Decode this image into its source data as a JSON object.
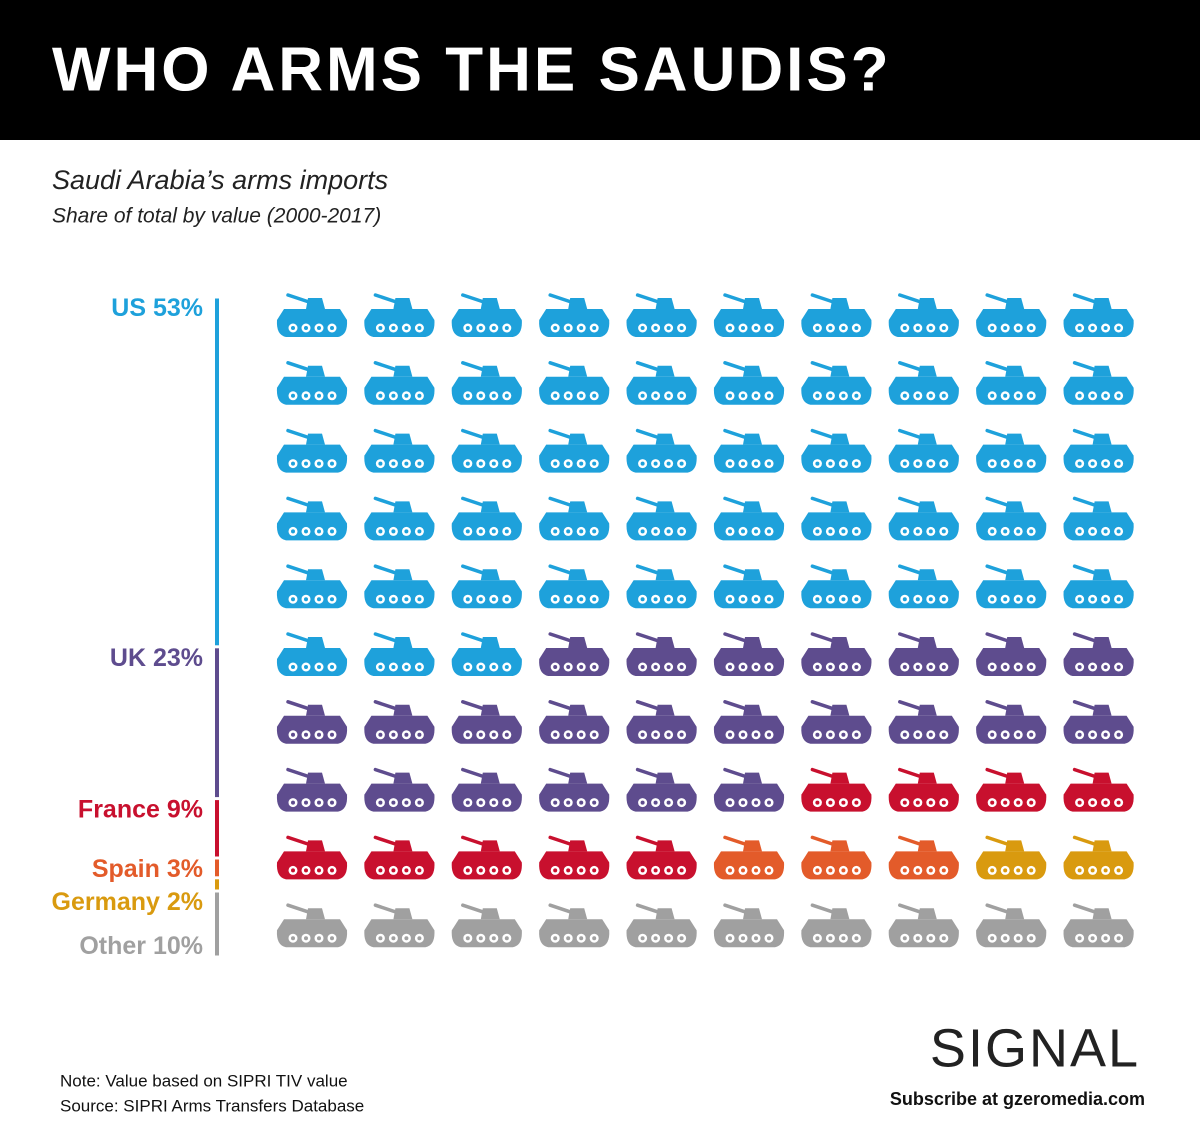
{
  "chart_data": {
    "type": "waffle",
    "title": "WHO ARMS THE SAUDIS?",
    "subtitle": "Saudi Arabia’s arms imports",
    "subtitle_2": "Share of total by value (2000-2017)",
    "categories": [
      "US",
      "UK",
      "France",
      "Spain",
      "Germany",
      "Other"
    ],
    "values": [
      53,
      23,
      9,
      3,
      2,
      10
    ],
    "value_labels": [
      "53%",
      "23%",
      "9%",
      "3%",
      "2%",
      "10%"
    ],
    "colors": [
      "#1ea1db",
      "#5e4c8e",
      "#c8102e",
      "#e35b2a",
      "#d99a0f",
      "#a0a0a0"
    ],
    "note": "Note: Value based on SIPRI TIV value",
    "source": "Source: SIPRI Arms Transfers Database",
    "logo": "SIGNAL",
    "subscribe": "Subscribe at gzeromedia.com"
  }
}
